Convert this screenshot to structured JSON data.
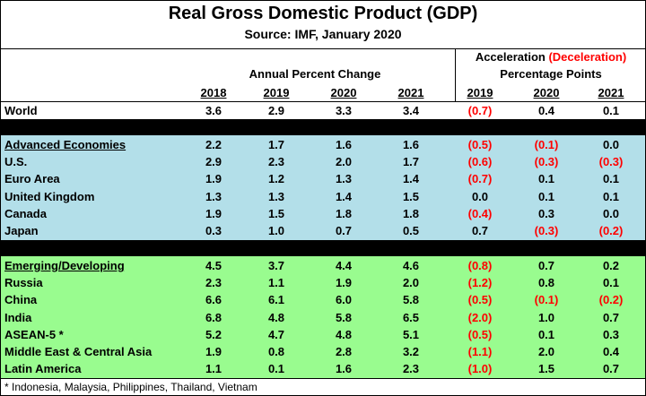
{
  "header": {
    "title": "Real Gross Domestic Product (GDP)",
    "source": "Source:  IMF, January 2020",
    "group_left": "Annual Percent Change",
    "group_right_a": "Acceleration ",
    "group_right_b": "(Deceleration)",
    "group_right_c": "Percentage Points",
    "years_left": [
      "2018",
      "2019",
      "2020",
      "2021"
    ],
    "years_right": [
      "2019",
      "2020",
      "2021"
    ]
  },
  "world": {
    "name": "World",
    "values": [
      "3.6",
      "2.9",
      "3.3",
      "3.4"
    ],
    "changes": [
      "(0.7)",
      "0.4",
      "0.1"
    ]
  },
  "advanced": [
    {
      "name": "Advanced Economies",
      "values": [
        "2.2",
        "1.7",
        "1.6",
        "1.6"
      ],
      "changes": [
        "(0.5)",
        "(0.1)",
        "0.0"
      ]
    },
    {
      "name": "U.S.",
      "values": [
        "2.9",
        "2.3",
        "2.0",
        "1.7"
      ],
      "changes": [
        "(0.6)",
        "(0.3)",
        "(0.3)"
      ]
    },
    {
      "name": "Euro Area",
      "values": [
        "1.9",
        "1.2",
        "1.3",
        "1.4"
      ],
      "changes": [
        "(0.7)",
        "0.1",
        "0.1"
      ]
    },
    {
      "name": "United Kingdom",
      "values": [
        "1.3",
        "1.3",
        "1.4",
        "1.5"
      ],
      "changes": [
        "0.0",
        "0.1",
        "0.1"
      ]
    },
    {
      "name": "Canada",
      "values": [
        "1.9",
        "1.5",
        "1.8",
        "1.8"
      ],
      "changes": [
        "(0.4)",
        "0.3",
        "0.0"
      ]
    },
    {
      "name": "Japan",
      "values": [
        "0.3",
        "1.0",
        "0.7",
        "0.5"
      ],
      "changes": [
        "0.7",
        "(0.3)",
        "(0.2)"
      ]
    }
  ],
  "emerging": [
    {
      "name": "Emerging/Developing",
      "values": [
        "4.5",
        "3.7",
        "4.4",
        "4.6"
      ],
      "changes": [
        "(0.8)",
        "0.7",
        "0.2"
      ]
    },
    {
      "name": "Russia",
      "values": [
        "2.3",
        "1.1",
        "1.9",
        "2.0"
      ],
      "changes": [
        "(1.2)",
        "0.8",
        "0.1"
      ]
    },
    {
      "name": "China",
      "values": [
        "6.6",
        "6.1",
        "6.0",
        "5.8"
      ],
      "changes": [
        "(0.5)",
        "(0.1)",
        "(0.2)"
      ]
    },
    {
      "name": "India",
      "values": [
        "6.8",
        "4.8",
        "5.8",
        "6.5"
      ],
      "changes": [
        "(2.0)",
        "1.0",
        "0.7"
      ]
    },
    {
      "name": "ASEAN-5 *",
      "values": [
        "5.2",
        "4.7",
        "4.8",
        "5.1"
      ],
      "changes": [
        "(0.5)",
        "0.1",
        "0.3"
      ]
    },
    {
      "name": "Middle East & Central Asia",
      "values": [
        "1.9",
        "0.8",
        "2.8",
        "3.2"
      ],
      "changes": [
        "(1.1)",
        "2.0",
        "0.4"
      ]
    },
    {
      "name": "Latin America",
      "values": [
        "1.1",
        "0.1",
        "1.6",
        "2.3"
      ],
      "changes": [
        "(1.0)",
        "1.5",
        "0.7"
      ]
    }
  ],
  "footnote": "* Indonesia, Malaysia, Philippines, Thailand, Vietnam",
  "colors": {
    "advanced_bg": "#b3dfe9",
    "emerging_bg": "#99fc8f",
    "negative": "#ff0000",
    "separator": "#000000"
  }
}
